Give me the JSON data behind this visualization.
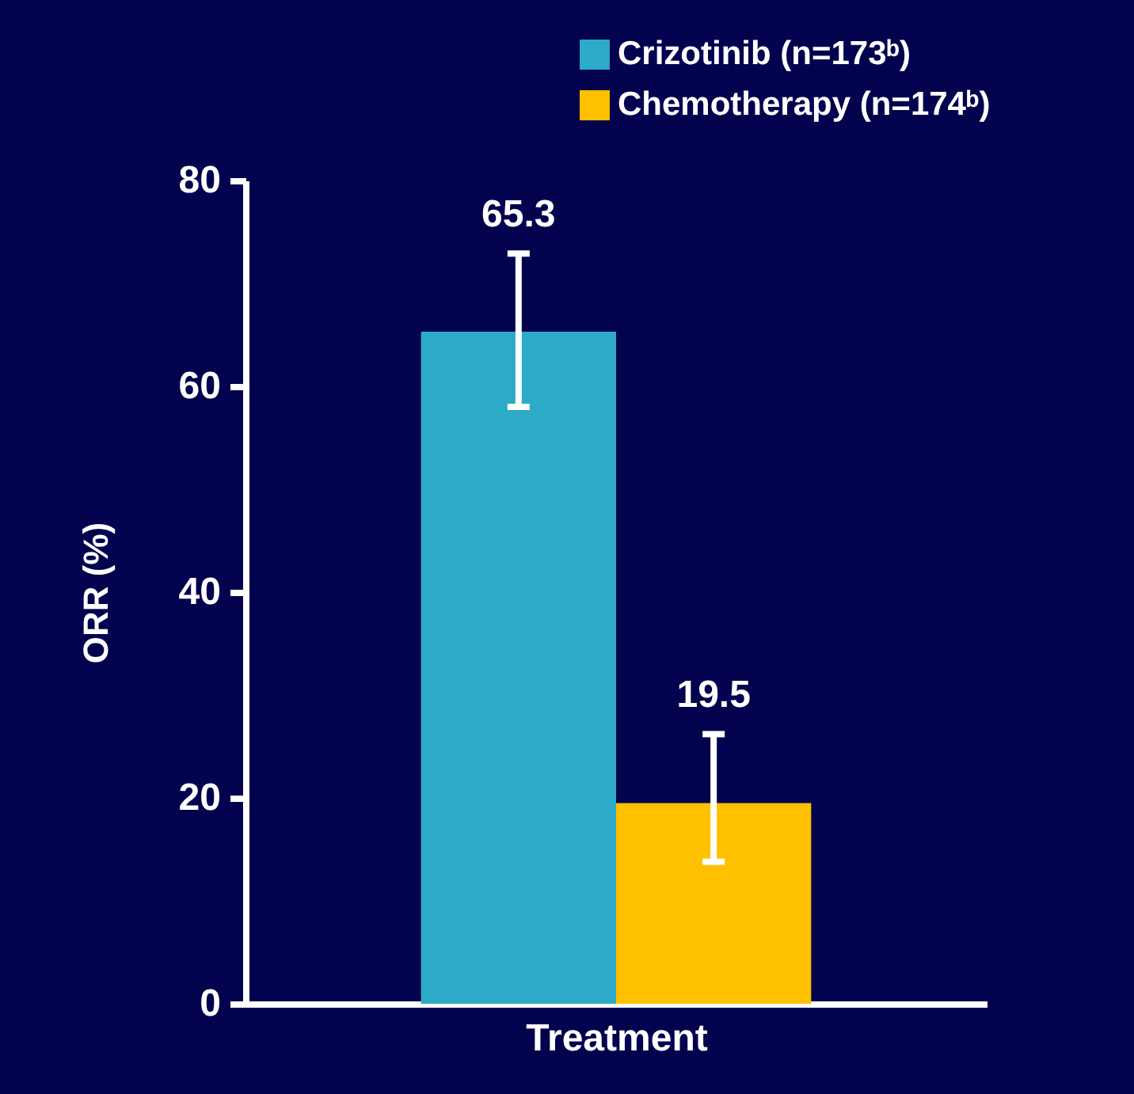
{
  "chart_data": {
    "type": "bar",
    "xlabel": "Treatment",
    "ylabel": "ORR (%)",
    "categories": [
      null
    ],
    "series": [
      {
        "name": "Crizotinib (n=173ᵇ)",
        "color": "#2caac7",
        "values": [
          65.3
        ],
        "errors": [
          [
            58,
            72.9
          ]
        ]
      },
      {
        "name": "Chemotherapy (n=174ᵇ)",
        "color": "#ffc000",
        "values": [
          19.5
        ],
        "errors": [
          [
            13.8,
            26.2
          ]
        ]
      }
    ],
    "ylim": [
      0,
      80
    ],
    "yticks": [
      0,
      20,
      40,
      60,
      80
    ],
    "grid": false,
    "legend": "top right",
    "data_labels": true
  }
}
